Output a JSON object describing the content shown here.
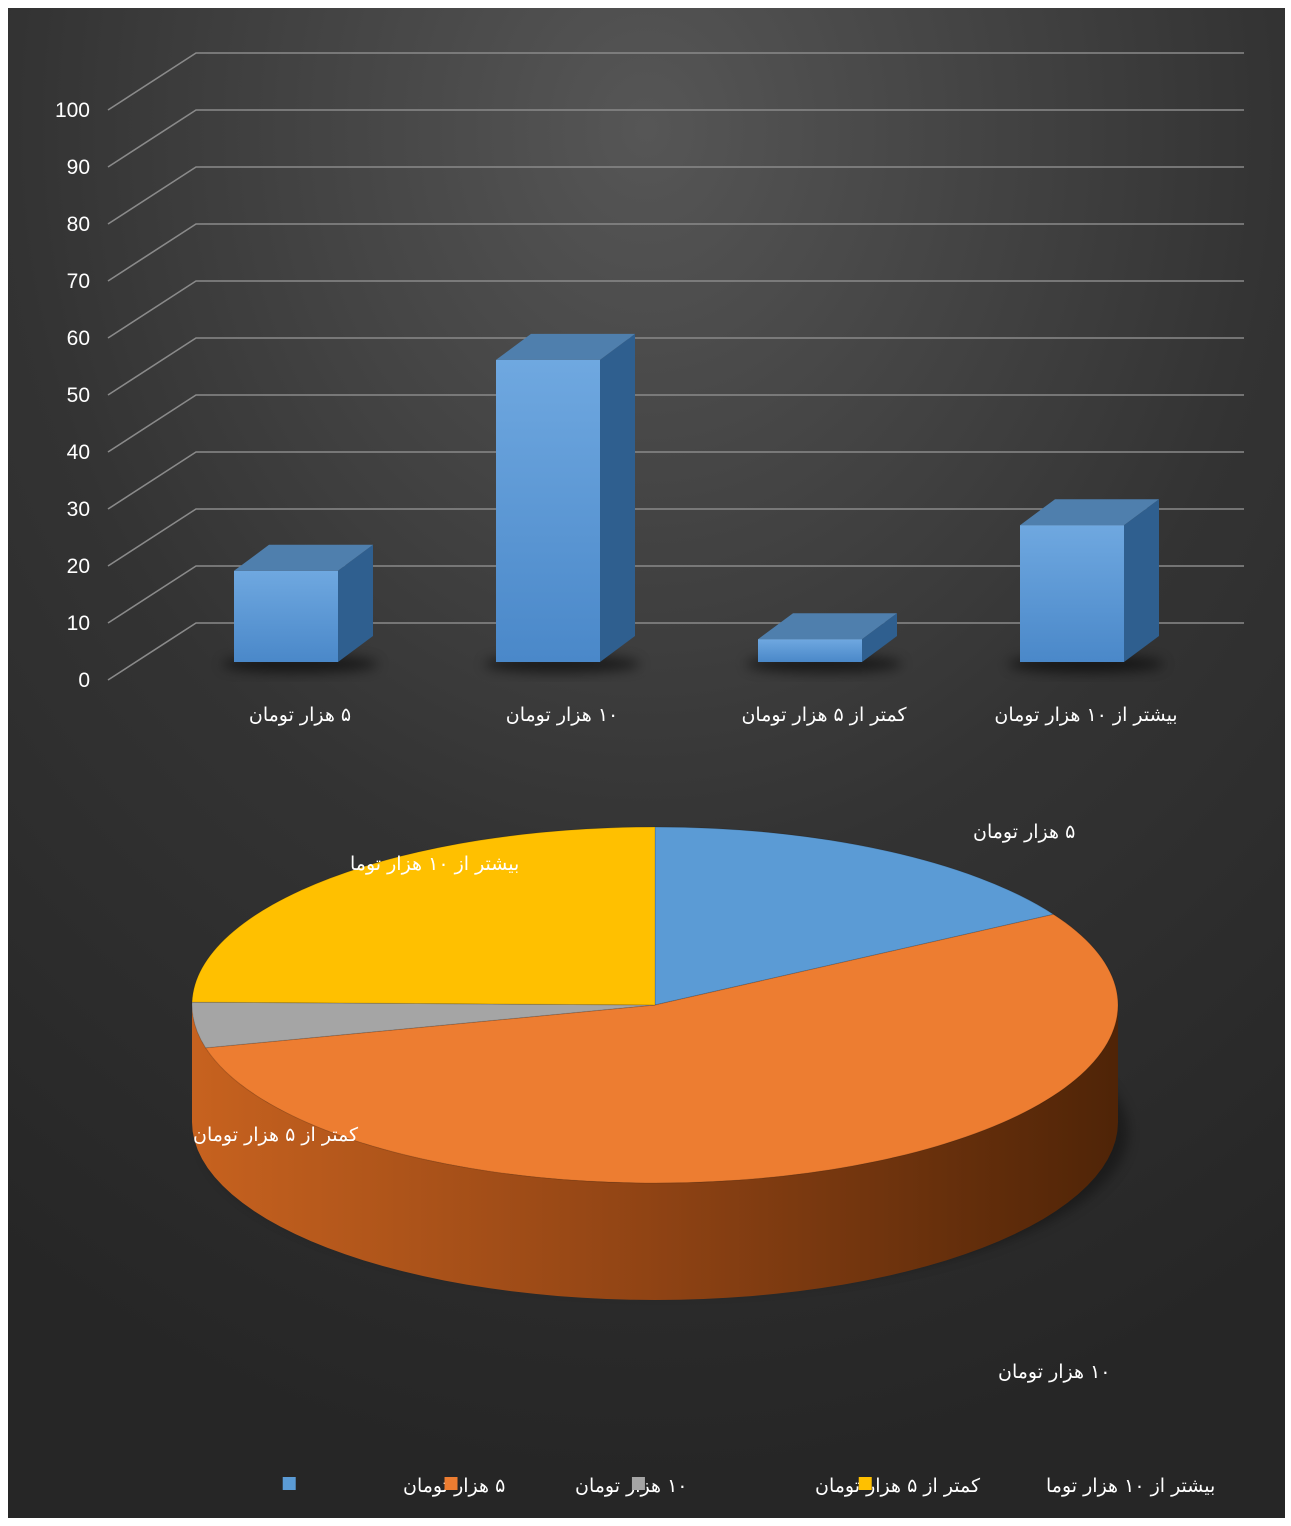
{
  "chart_data": [
    {
      "type": "bar",
      "categories": [
        "۵ هزار تومان",
        "۱۰ هزار تومان",
        "کمتر از ۵ هزار تومان",
        "بیشتر از ۱۰ هزار تومان"
      ],
      "values": [
        16,
        53,
        4,
        24
      ],
      "ylim": [
        0,
        100
      ],
      "yticks": [
        "0",
        "10",
        "20",
        "30",
        "40",
        "50",
        "60",
        "70",
        "80",
        "90",
        "100"
      ],
      "grid": true,
      "colors": {
        "bar": "#5b9bd5"
      }
    },
    {
      "type": "pie",
      "labels": [
        "۵ هزار تومان",
        "۱۰ هزار تومان",
        "کمتر از ۵ هزار تومان",
        "بیشتر از ۱۰ هزار توما"
      ],
      "values": [
        16,
        53,
        4,
        24
      ],
      "colors": [
        "#5b9bd5",
        "#ed7d31",
        "#a5a5a5",
        "#ffc000"
      ],
      "legend_position": "bottom"
    }
  ]
}
